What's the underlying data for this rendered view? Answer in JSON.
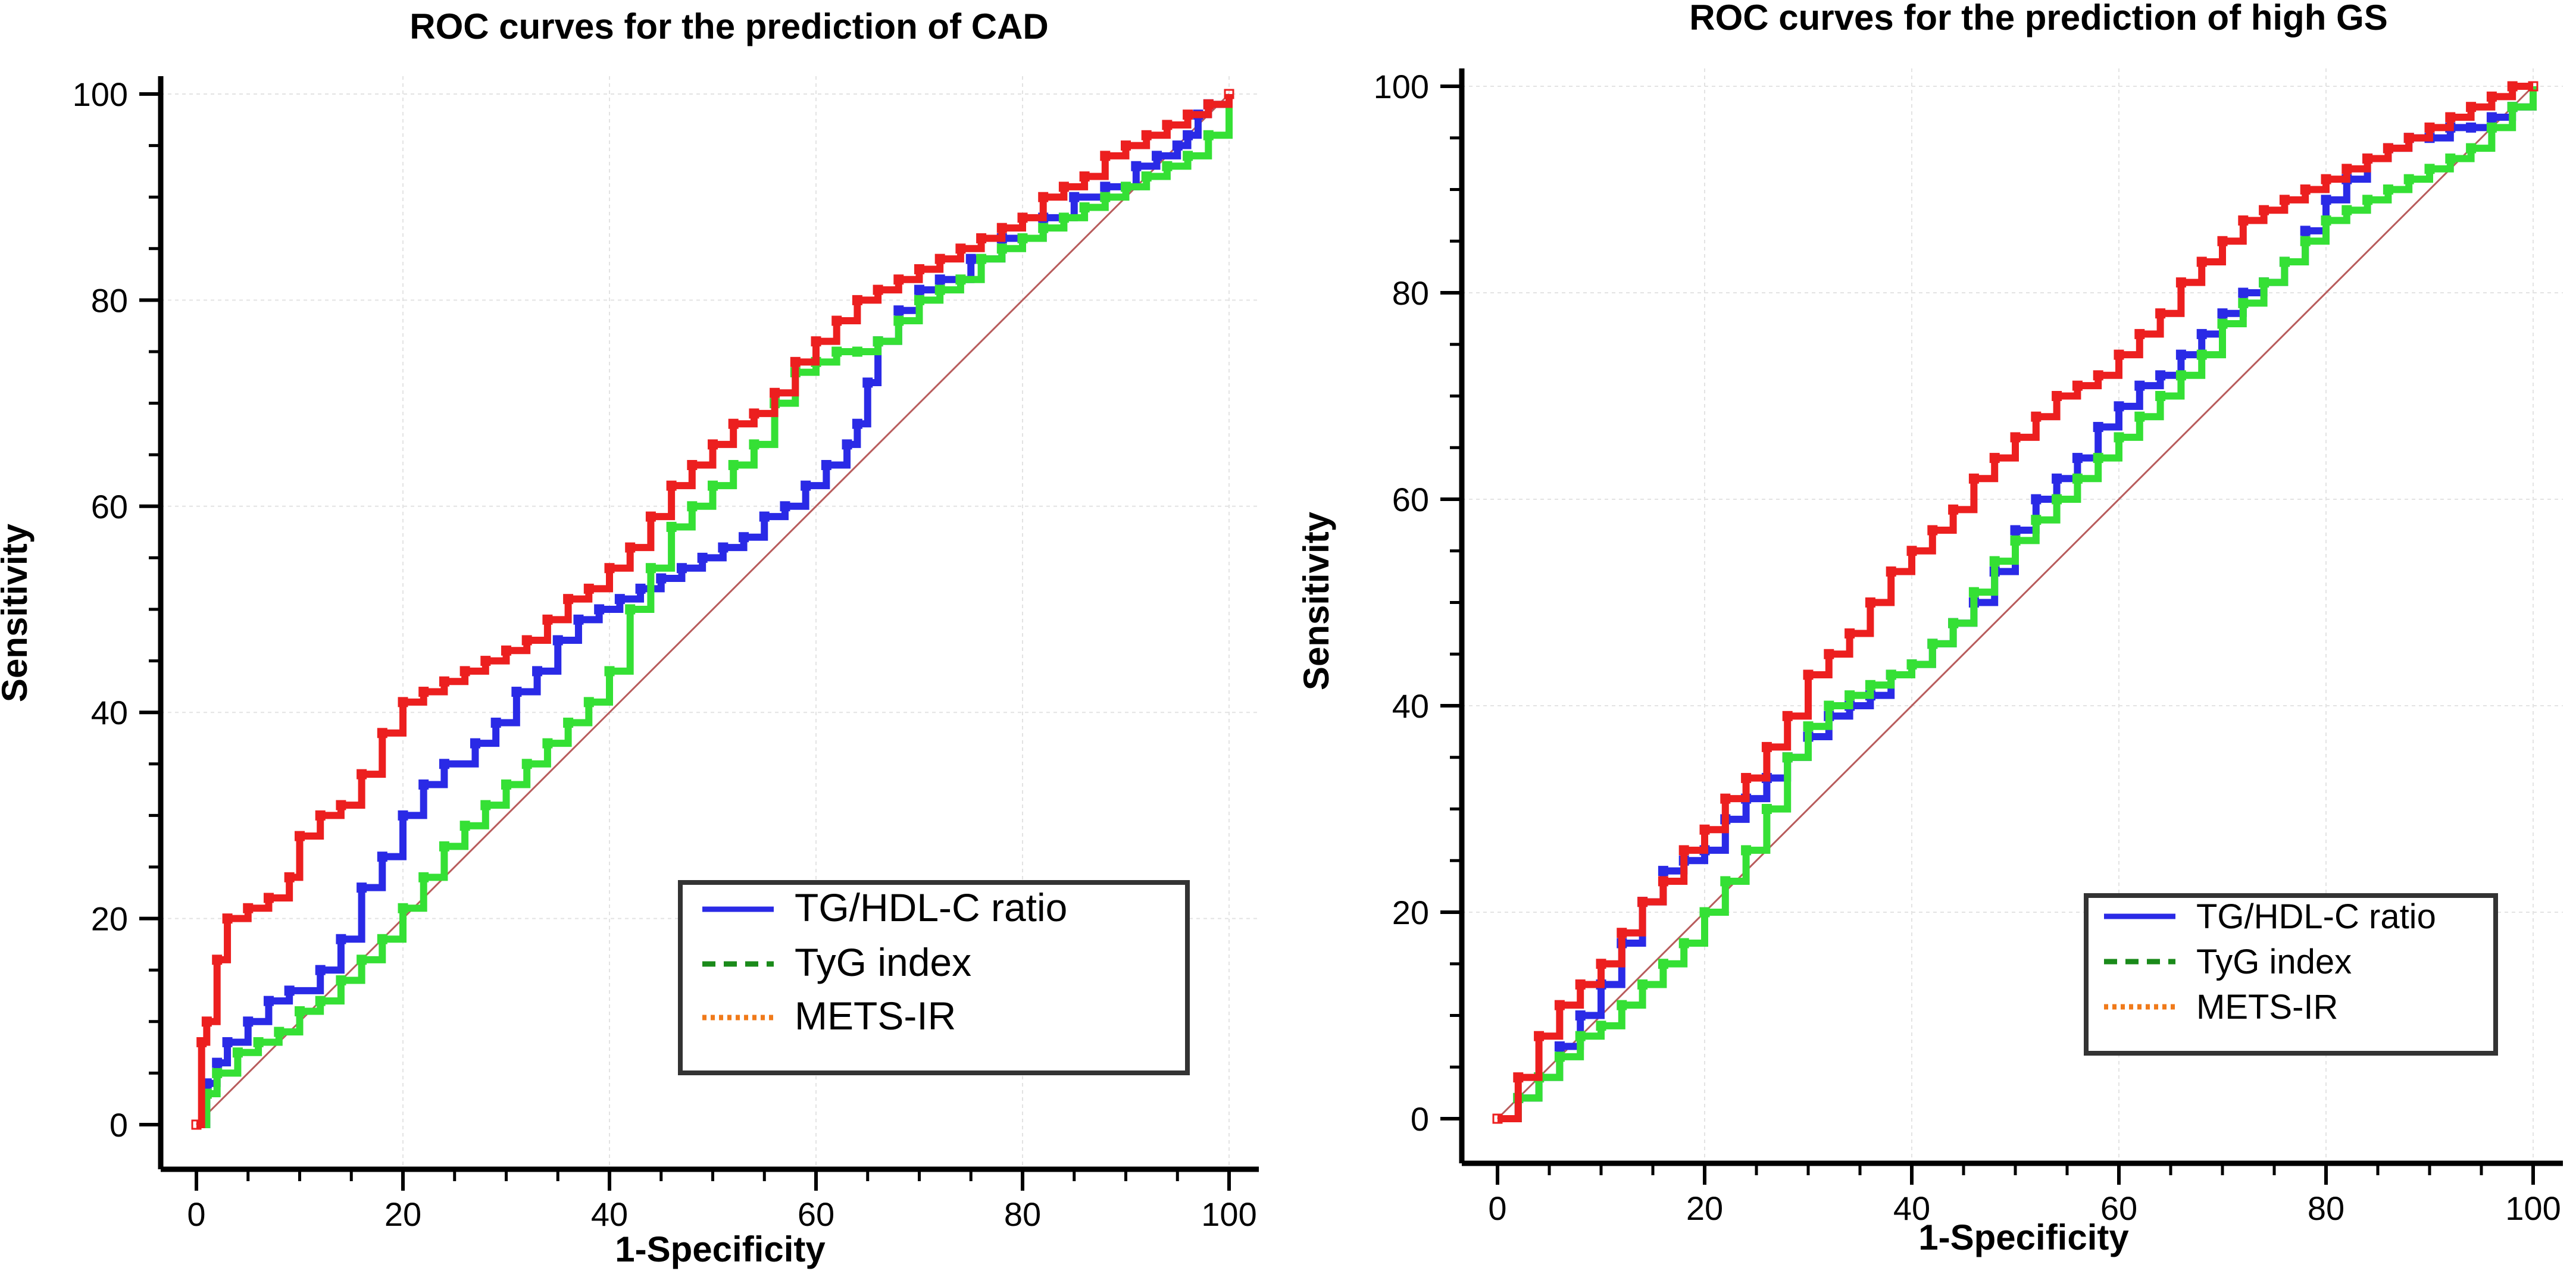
{
  "colors": {
    "blue": "#2a2ae6",
    "green": "#35e035",
    "red": "#ec1f1f",
    "ref": "#b85c5c"
  },
  "chart_data": [
    {
      "type": "line",
      "title": "ROC curves for the prediction of CAD",
      "xlabel": "1-Specificity",
      "ylabel": "Sensitivity",
      "xlim": [
        0,
        100
      ],
      "ylim": [
        0,
        100
      ],
      "xticks": [
        "0",
        "20",
        "40",
        "60",
        "80",
        "100"
      ],
      "yticks": [
        "0",
        "20",
        "40",
        "60",
        "80",
        "100"
      ],
      "grid": true,
      "legend": "bottom-right",
      "legend_entries": [
        {
          "label": "TG/HDL-C ratio",
          "style": "solid",
          "color": "#2a2ae6"
        },
        {
          "label": "TyG index",
          "style": "dashed",
          "color": "#1a8a1a"
        },
        {
          "label": "METS-IR",
          "style": "dotted",
          "color": "#f07a1a"
        }
      ],
      "reference_line": [
        [
          0,
          0
        ],
        [
          100,
          100
        ]
      ],
      "series": [
        {
          "name": "TG/HDL-C ratio",
          "color": "#2a2ae6",
          "x": [
            0,
            1,
            2,
            3,
            5,
            7,
            9,
            12,
            14,
            16,
            18,
            20,
            22,
            24,
            27,
            29,
            31,
            33,
            35,
            37,
            39,
            41,
            43,
            45,
            47,
            49,
            51,
            53,
            55,
            57,
            59,
            61,
            63,
            64,
            65,
            66,
            68,
            70,
            72,
            75,
            78,
            82,
            85,
            88,
            91,
            93,
            95,
            96,
            97,
            98,
            100
          ],
          "y": [
            0,
            4,
            6,
            8,
            10,
            12,
            13,
            15,
            18,
            23,
            26,
            30,
            33,
            35,
            37,
            39,
            42,
            44,
            47,
            49,
            50,
            51,
            52,
            53,
            54,
            55,
            56,
            57,
            59,
            60,
            62,
            64,
            66,
            68,
            72,
            76,
            79,
            81,
            82,
            84,
            86,
            88,
            90,
            91,
            93,
            94,
            95,
            96,
            98,
            99,
            100
          ]
        },
        {
          "name": "TyG index",
          "color": "#35e035",
          "x": [
            0,
            1,
            2,
            4,
            6,
            8,
            10,
            12,
            14,
            16,
            18,
            20,
            22,
            24,
            26,
            28,
            30,
            32,
            34,
            36,
            38,
            40,
            42,
            44,
            46,
            48,
            50,
            52,
            54,
            56,
            58,
            60,
            62,
            64,
            66,
            68,
            70,
            72,
            74,
            76,
            78,
            80,
            82,
            84,
            86,
            88,
            90,
            92,
            94,
            96,
            98,
            100
          ],
          "y": [
            0,
            3,
            5,
            7,
            8,
            9,
            11,
            12,
            14,
            16,
            18,
            21,
            24,
            27,
            29,
            31,
            33,
            35,
            37,
            39,
            41,
            44,
            50,
            54,
            58,
            60,
            62,
            64,
            66,
            70,
            73,
            74,
            75,
            75,
            76,
            78,
            80,
            81,
            82,
            84,
            85,
            86,
            87,
            88,
            89,
            90,
            91,
            92,
            93,
            94,
            96,
            100
          ]
        },
        {
          "name": "METS-IR",
          "color": "#ec1f1f",
          "x": [
            0,
            0.5,
            1,
            2,
            3,
            5,
            7,
            9,
            10,
            12,
            14,
            16,
            18,
            20,
            22,
            24,
            26,
            28,
            30,
            32,
            34,
            36,
            38,
            40,
            42,
            44,
            46,
            48,
            50,
            52,
            54,
            56,
            58,
            60,
            62,
            64,
            66,
            68,
            70,
            72,
            74,
            76,
            78,
            80,
            82,
            84,
            86,
            88,
            90,
            92,
            94,
            96,
            98,
            100
          ],
          "y": [
            0,
            8,
            10,
            16,
            20,
            21,
            22,
            24,
            28,
            30,
            31,
            34,
            38,
            41,
            42,
            43,
            44,
            45,
            46,
            47,
            49,
            51,
            52,
            54,
            56,
            59,
            62,
            64,
            66,
            68,
            69,
            71,
            74,
            76,
            78,
            80,
            81,
            82,
            83,
            84,
            85,
            86,
            87,
            88,
            90,
            91,
            92,
            94,
            95,
            96,
            97,
            98,
            99,
            100
          ]
        }
      ]
    },
    {
      "type": "line",
      "title": "ROC curves for the prediction of high GS",
      "xlabel": "1-Specificity",
      "ylabel": "Sensitivity",
      "xlim": [
        0,
        100
      ],
      "ylim": [
        0,
        100
      ],
      "xticks": [
        "0",
        "20",
        "40",
        "60",
        "80",
        "100"
      ],
      "yticks": [
        "0",
        "20",
        "40",
        "60",
        "80",
        "100"
      ],
      "grid": true,
      "legend": "bottom-right",
      "legend_entries": [
        {
          "label": "TG/HDL-C ratio",
          "style": "solid",
          "color": "#2a2ae6"
        },
        {
          "label": "TyG index",
          "style": "dashed",
          "color": "#1a8a1a"
        },
        {
          "label": "METS-IR",
          "style": "dotted",
          "color": "#f07a1a"
        }
      ],
      "reference_line": [
        [
          0,
          0
        ],
        [
          100,
          100
        ]
      ],
      "series": [
        {
          "name": "TG/HDL-C ratio",
          "color": "#2a2ae6",
          "x": [
            0,
            2,
            4,
            6,
            8,
            10,
            12,
            14,
            16,
            18,
            20,
            22,
            24,
            26,
            28,
            30,
            32,
            34,
            36,
            38,
            40,
            42,
            44,
            46,
            48,
            50,
            52,
            54,
            56,
            58,
            60,
            62,
            64,
            66,
            68,
            70,
            72,
            74,
            76,
            78,
            80,
            82,
            84,
            86,
            88,
            90,
            92,
            94,
            96,
            98,
            100
          ],
          "y": [
            0,
            2,
            4,
            7,
            10,
            13,
            17,
            21,
            24,
            25,
            26,
            29,
            31,
            33,
            35,
            37,
            39,
            40,
            41,
            43,
            44,
            46,
            48,
            50,
            53,
            57,
            60,
            62,
            64,
            67,
            69,
            71,
            72,
            74,
            76,
            78,
            80,
            81,
            83,
            86,
            89,
            91,
            93,
            94,
            95,
            95,
            96,
            96,
            97,
            98,
            100
          ]
        },
        {
          "name": "TyG index",
          "color": "#35e035",
          "x": [
            0,
            2,
            4,
            6,
            8,
            10,
            12,
            14,
            16,
            18,
            20,
            22,
            24,
            26,
            28,
            30,
            32,
            34,
            36,
            38,
            40,
            42,
            44,
            46,
            48,
            50,
            52,
            54,
            56,
            58,
            60,
            62,
            64,
            66,
            68,
            70,
            72,
            74,
            76,
            78,
            80,
            82,
            84,
            86,
            88,
            90,
            92,
            94,
            96,
            98,
            100
          ],
          "y": [
            0,
            2,
            4,
            6,
            8,
            9,
            11,
            13,
            15,
            17,
            20,
            23,
            26,
            30,
            35,
            38,
            40,
            41,
            42,
            43,
            44,
            46,
            48,
            51,
            54,
            56,
            58,
            60,
            62,
            64,
            66,
            68,
            70,
            72,
            74,
            77,
            79,
            81,
            83,
            85,
            87,
            88,
            89,
            90,
            91,
            92,
            93,
            94,
            96,
            98,
            100
          ]
        },
        {
          "name": "METS-IR",
          "color": "#ec1f1f",
          "x": [
            0,
            2,
            4,
            6,
            8,
            10,
            12,
            14,
            16,
            18,
            20,
            22,
            24,
            26,
            28,
            30,
            32,
            34,
            36,
            38,
            40,
            42,
            44,
            46,
            48,
            50,
            52,
            54,
            56,
            58,
            60,
            62,
            64,
            66,
            68,
            70,
            72,
            74,
            76,
            78,
            80,
            82,
            84,
            86,
            88,
            90,
            92,
            94,
            96,
            98,
            100
          ],
          "y": [
            0,
            4,
            8,
            11,
            13,
            15,
            18,
            21,
            23,
            26,
            28,
            31,
            33,
            36,
            39,
            43,
            45,
            47,
            50,
            53,
            55,
            57,
            59,
            62,
            64,
            66,
            68,
            70,
            71,
            72,
            74,
            76,
            78,
            81,
            83,
            85,
            87,
            88,
            89,
            90,
            91,
            92,
            93,
            94,
            95,
            96,
            97,
            98,
            99,
            100,
            100
          ]
        }
      ]
    }
  ]
}
